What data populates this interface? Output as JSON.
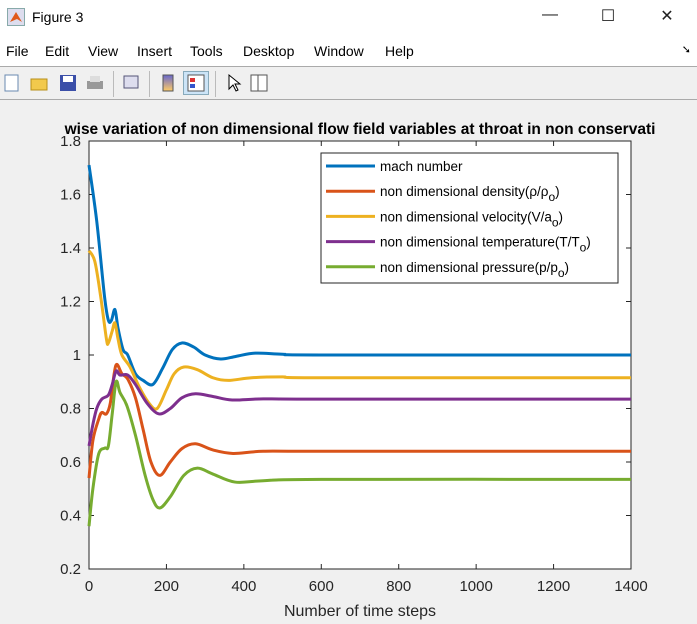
{
  "window": {
    "title": "Figure 3",
    "minimize_icon": "minimize-icon",
    "maximize_icon": "maximize-icon",
    "close_icon": "close-icon"
  },
  "menu": [
    "File",
    "Edit",
    "View",
    "Insert",
    "Tools",
    "Desktop",
    "Window",
    "Help"
  ],
  "toolbar": [
    "new-figure-icon",
    "open-icon",
    "save-icon",
    "print-icon",
    "link-plot-icon",
    "colorbar-icon",
    "legend-icon",
    "pointer-icon",
    "property-inspector-icon"
  ],
  "chart_data": {
    "type": "line",
    "title": "wise variation of non dimensional flow field variables at throat in non conservati",
    "xlabel": "Number of time steps",
    "ylabel": "",
    "xlim": [
      0,
      1400
    ],
    "ylim": [
      0.2,
      1.8
    ],
    "xticks": [
      "0",
      "200",
      "400",
      "600",
      "800",
      "1000",
      "1200",
      "1400"
    ],
    "yticks": [
      "0.2",
      "0.4",
      "0.6",
      "0.8",
      "1",
      "1.2",
      "1.4",
      "1.6",
      "1.8"
    ],
    "grid": false,
    "legend_position": "top-right",
    "series": [
      {
        "name": "mach number",
        "name_sub": "",
        "name_end": "",
        "color": "#0072BD",
        "points": [
          [
            0,
            1.71
          ],
          [
            20,
            1.5
          ],
          [
            40,
            1.22
          ],
          [
            50,
            1.13
          ],
          [
            58,
            1.13
          ],
          [
            67,
            1.17
          ],
          [
            75,
            1.1
          ],
          [
            88,
            1.02
          ],
          [
            100,
            1.0
          ],
          [
            120,
            0.93
          ],
          [
            140,
            0.905
          ],
          [
            165,
            0.89
          ],
          [
            190,
            0.95
          ],
          [
            215,
            1.02
          ],
          [
            240,
            1.045
          ],
          [
            270,
            1.03
          ],
          [
            300,
            1.0
          ],
          [
            340,
            0.985
          ],
          [
            380,
            0.995
          ],
          [
            430,
            1.007
          ],
          [
            500,
            1.003
          ],
          [
            600,
            1.0
          ],
          [
            1400,
            1.0
          ]
        ]
      },
      {
        "name": "non dimensional density(ρ/ρ",
        "name_sub": "o",
        "name_end": ")",
        "color": "#D95319",
        "points": [
          [
            0,
            0.54
          ],
          [
            10,
            0.68
          ],
          [
            25,
            0.76
          ],
          [
            33,
            0.785
          ],
          [
            45,
            0.78
          ],
          [
            55,
            0.82
          ],
          [
            65,
            0.93
          ],
          [
            72,
            0.965
          ],
          [
            85,
            0.93
          ],
          [
            100,
            0.91
          ],
          [
            120,
            0.84
          ],
          [
            140,
            0.72
          ],
          [
            160,
            0.6
          ],
          [
            183,
            0.55
          ],
          [
            210,
            0.6
          ],
          [
            240,
            0.65
          ],
          [
            275,
            0.668
          ],
          [
            320,
            0.645
          ],
          [
            372,
            0.632
          ],
          [
            450,
            0.64
          ],
          [
            600,
            0.64
          ],
          [
            1400,
            0.64
          ]
        ]
      },
      {
        "name": "non dimensional velocity(V/a",
        "name_sub": "o",
        "name_end": ")",
        "color": "#EDB120",
        "points": [
          [
            0,
            1.39
          ],
          [
            15,
            1.35
          ],
          [
            30,
            1.22
          ],
          [
            45,
            1.06
          ],
          [
            50,
            1.045
          ],
          [
            60,
            1.09
          ],
          [
            67,
            1.12
          ],
          [
            75,
            1.06
          ],
          [
            85,
            1.0
          ],
          [
            106,
            0.955
          ],
          [
            130,
            0.88
          ],
          [
            155,
            0.82
          ],
          [
            176,
            0.8
          ],
          [
            200,
            0.87
          ],
          [
            220,
            0.93
          ],
          [
            245,
            0.955
          ],
          [
            280,
            0.945
          ],
          [
            320,
            0.915
          ],
          [
            360,
            0.905
          ],
          [
            420,
            0.915
          ],
          [
            500,
            0.918
          ],
          [
            600,
            0.915
          ],
          [
            1400,
            0.915
          ]
        ]
      },
      {
        "name": "non dimensional temperature(T/T",
        "name_sub": "o",
        "name_end": ")",
        "color": "#7E2F8E",
        "points": [
          [
            0,
            0.66
          ],
          [
            10,
            0.74
          ],
          [
            20,
            0.8
          ],
          [
            33,
            0.835
          ],
          [
            50,
            0.85
          ],
          [
            60,
            0.89
          ],
          [
            70,
            0.94
          ],
          [
            80,
            0.925
          ],
          [
            100,
            0.925
          ],
          [
            120,
            0.89
          ],
          [
            150,
            0.82
          ],
          [
            180,
            0.78
          ],
          [
            210,
            0.8
          ],
          [
            240,
            0.84
          ],
          [
            275,
            0.855
          ],
          [
            320,
            0.845
          ],
          [
            370,
            0.832
          ],
          [
            450,
            0.836
          ],
          [
            600,
            0.835
          ],
          [
            1400,
            0.835
          ]
        ]
      },
      {
        "name": "non dimensional pressure(p/p",
        "name_sub": "o",
        "name_end": ")",
        "color": "#77AC30",
        "points": [
          [
            0,
            0.36
          ],
          [
            10,
            0.5
          ],
          [
            25,
            0.63
          ],
          [
            41,
            0.652
          ],
          [
            50,
            0.66
          ],
          [
            60,
            0.78
          ],
          [
            70,
            0.9
          ],
          [
            80,
            0.86
          ],
          [
            98,
            0.81
          ],
          [
            120,
            0.7
          ],
          [
            145,
            0.55
          ],
          [
            165,
            0.46
          ],
          [
            183,
            0.428
          ],
          [
            210,
            0.47
          ],
          [
            245,
            0.55
          ],
          [
            280,
            0.577
          ],
          [
            320,
            0.555
          ],
          [
            377,
            0.525
          ],
          [
            450,
            0.53
          ],
          [
            600,
            0.535
          ],
          [
            1400,
            0.535
          ]
        ]
      }
    ]
  }
}
